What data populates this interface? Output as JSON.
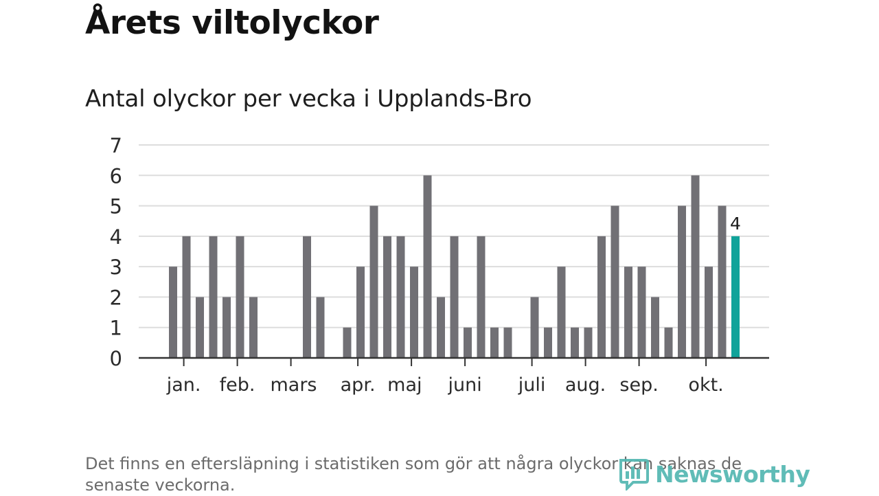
{
  "header": {
    "title": "Årets viltolyckor",
    "subtitle": "Antal olyckor per vecka i Upplands-Bro"
  },
  "footer": {
    "note": "Det finns en eftersläpning i statistiken som gör att några olyckor kan saknas de senaste veckorna.",
    "brand": "Newsworthy"
  },
  "colors": {
    "bar": "#717075",
    "highlight": "#10a39a",
    "grid": "#dddddd",
    "axis": "#333333",
    "brand": "#53b7b1"
  },
  "chart_data": {
    "type": "bar",
    "title": "Antal olyckor per vecka i Upplands-Bro",
    "xlabel": "",
    "ylabel": "",
    "ylim": [
      0,
      7
    ],
    "yticks": [
      0,
      1,
      2,
      3,
      4,
      5,
      6,
      7
    ],
    "grid": true,
    "values": [
      3,
      4,
      2,
      4,
      2,
      4,
      2,
      0,
      0,
      0,
      4,
      2,
      0,
      1,
      3,
      5,
      4,
      4,
      3,
      6,
      2,
      4,
      1,
      4,
      1,
      1,
      0,
      2,
      1,
      3,
      1,
      1,
      4,
      5,
      3,
      3,
      2,
      1,
      5,
      6,
      3,
      5,
      4
    ],
    "highlight_index": 42,
    "highlight_label": "4",
    "month_labels": [
      "jan.",
      "feb.",
      "mars",
      "apr.",
      "maj",
      "juni",
      "juli",
      "aug.",
      "sep.",
      "okt."
    ],
    "month_tick_week": [
      0.8,
      4.8,
      8.8,
      13.8,
      17.8,
      21.8,
      26.8,
      30.8,
      34.8,
      39.8
    ],
    "month_label_week": [
      0.8,
      4.8,
      9.0,
      13.8,
      17.3,
      21.8,
      26.8,
      30.8,
      34.8,
      39.8
    ]
  }
}
